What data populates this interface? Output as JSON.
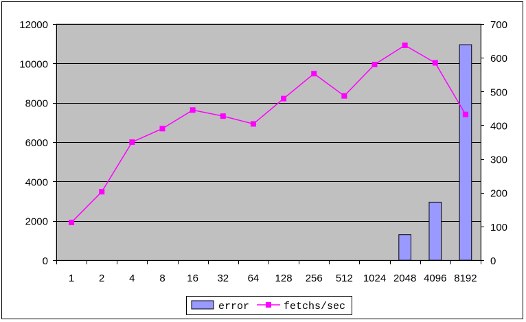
{
  "chart_data": {
    "type": "bar+line",
    "categories": [
      "1",
      "2",
      "4",
      "8",
      "16",
      "32",
      "64",
      "128",
      "256",
      "512",
      "1024",
      "2048",
      "4096",
      "8192"
    ],
    "series": [
      {
        "name": "error",
        "type": "bar",
        "axis": "left",
        "color": "#9999ff",
        "values": [
          0,
          0,
          0,
          0,
          0,
          0,
          0,
          0,
          0,
          0,
          0,
          1300,
          2950,
          10950
        ]
      },
      {
        "name": "fetchs/sec",
        "type": "line",
        "axis": "right",
        "color": "#ff00ff",
        "marker": "square",
        "values": [
          112,
          203,
          350,
          390,
          445,
          427,
          404,
          479,
          553,
          487,
          580,
          637,
          585,
          432
        ]
      }
    ],
    "y_left": {
      "min": 0,
      "max": 12000,
      "ticks": [
        "0",
        "2000",
        "4000",
        "6000",
        "8000",
        "10000",
        "12000"
      ]
    },
    "y_right": {
      "min": 0,
      "max": 700,
      "ticks": [
        "0",
        "100",
        "200",
        "300",
        "400",
        "500",
        "600",
        "700"
      ]
    },
    "plot_background": "#c0c0c0",
    "grid": true,
    "legend": {
      "position": "bottom",
      "items": [
        "error",
        "fetchs/sec"
      ]
    }
  }
}
